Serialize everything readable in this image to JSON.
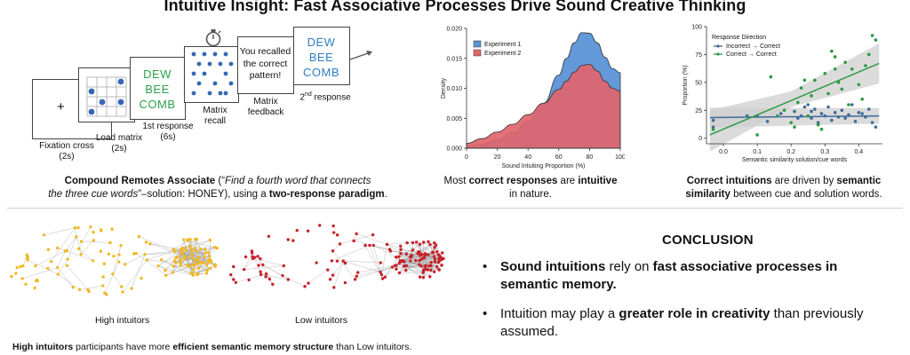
{
  "title": "Intuitive Insight: Fast Associative Processes Drive Sound Creative Thinking",
  "paradigm": {
    "fixation_symbol": "+",
    "cue_words": [
      "DEW",
      "BEE",
      "COMB"
    ],
    "feedback_text": [
      "You recalled",
      "the correct",
      "pattern!"
    ],
    "labels": {
      "fixation": [
        "Fixation cross",
        "(2s)"
      ],
      "load": [
        "Load matrix",
        "(2s)"
      ],
      "first": [
        "1st response",
        "(6s)"
      ],
      "recall": [
        "Matrix",
        "recall"
      ],
      "feedback": [
        "Matrix",
        "feedback"
      ],
      "second_sup": "nd",
      "second_num": "2",
      "second_rest": " response"
    },
    "caption": {
      "l1_b": "Compound Remotes Associate",
      "l1_a": " (“",
      "l1_i": "Find a fourth word that connects",
      "l2_i": "the three cue words",
      "l2_a": "”–solution: HONEY), using a ",
      "l2_b": "two-response paradigm",
      "l2_c": "."
    },
    "colors": {
      "green": "#2ca24b",
      "blue": "#2f7fc1",
      "dot": "#3567b5"
    }
  },
  "density_caption": {
    "a": "Most ",
    "b1": "correct responses",
    "c": " are ",
    "b2": "intuitive",
    "d": "in nature."
  },
  "scatter_caption": {
    "b1": "Correct intuitions",
    "a": " are driven by ",
    "b2": "semantic",
    "b3": "similarity",
    "c": " between cue and solution words."
  },
  "networks": {
    "high_label": "High intuitors",
    "low_label": "Low intuitors",
    "high_color": "#f2b822",
    "low_color": "#c8202a"
  },
  "conclusion": {
    "title": "CONCLUSION",
    "bullet": "•",
    "b1_bold1": "Sound intuitions",
    "b1_mid": " rely on ",
    "b1_bold2": "fast associative processes in",
    "b1_bold3": "semantic memory.",
    "b2_a": "Intuition may play a ",
    "b2_bold": "greater role in creativity",
    "b2_c": " than previously",
    "b2_d": "assumed."
  },
  "bottom_caption": {
    "b1": "High intuitors",
    "a": " participants have more ",
    "b2": "efficient  semantic memory structure",
    "c": " than Low intuitors."
  },
  "chart_data": [
    {
      "type": "area",
      "title": "",
      "xlabel": "Sound Intuiting Proportion (%)",
      "ylabel": "Density",
      "xlim": [
        0,
        100
      ],
      "ylim": [
        0,
        0.02
      ],
      "x_ticks": [
        "0",
        "20",
        "40",
        "60",
        "80",
        "100"
      ],
      "y_ticks": [
        "0.000",
        "0.005",
        "0.010",
        "0.015",
        "0.020"
      ],
      "legend": [
        "Experiment 1",
        "Experiment 2"
      ],
      "legend_position": "top-left",
      "x": [
        0,
        10,
        20,
        30,
        40,
        50,
        60,
        65,
        70,
        75,
        80,
        85,
        90,
        95,
        100
      ],
      "series": [
        {
          "name": "Experiment 1",
          "color": "#5b93d6",
          "values": [
            0.0003,
            0.0007,
            0.0014,
            0.0026,
            0.0045,
            0.0075,
            0.0122,
            0.015,
            0.0176,
            0.0193,
            0.0192,
            0.0176,
            0.0152,
            0.0133,
            0.0126
          ]
        },
        {
          "name": "Experiment 2",
          "color": "#e0656c",
          "values": [
            0.0008,
            0.0016,
            0.0027,
            0.004,
            0.0056,
            0.0075,
            0.0098,
            0.0112,
            0.0127,
            0.0138,
            0.014,
            0.0129,
            0.0112,
            0.01,
            0.0095
          ]
        }
      ]
    },
    {
      "type": "scatter",
      "title": "",
      "xlabel": "Semantic similarity solution/cue words",
      "ylabel": "Proportion (%)",
      "xlim": [
        -0.05,
        0.47
      ],
      "ylim": [
        -5,
        100
      ],
      "x_ticks": [
        "0.0",
        "0.1",
        "0.2",
        "0.3",
        "0.4"
      ],
      "y_ticks": [
        "0",
        "25",
        "50",
        "75",
        "100"
      ],
      "legend_title": "Response Direction",
      "legend_position": "top-left",
      "series": [
        {
          "name": "Incorrect → Correct",
          "color": "#3f6a9a",
          "fit": [
            [
              -0.04,
              18.5
            ],
            [
              0.46,
              20
            ]
          ],
          "points": [
            [
              -0.03,
              10
            ],
            [
              -0.03,
              16
            ],
            [
              0.07,
              20
            ],
            [
              0.1,
              20
            ],
            [
              0.13,
              15
            ],
            [
              0.17,
              22
            ],
            [
              0.21,
              24
            ],
            [
              0.23,
              20
            ],
            [
              0.24,
              28
            ],
            [
              0.25,
              30
            ],
            [
              0.26,
              18
            ],
            [
              0.27,
              26
            ],
            [
              0.28,
              14
            ],
            [
              0.29,
              22
            ],
            [
              0.3,
              20
            ],
            [
              0.31,
              28
            ],
            [
              0.32,
              16
            ],
            [
              0.33,
              23
            ],
            [
              0.34,
              19
            ],
            [
              0.35,
              25
            ],
            [
              0.37,
              21
            ],
            [
              0.38,
              30
            ],
            [
              0.39,
              15
            ],
            [
              0.4,
              23
            ],
            [
              0.41,
              22
            ],
            [
              0.42,
              19
            ],
            [
              0.43,
              26
            ],
            [
              0.44,
              14
            ],
            [
              0.45,
              10
            ],
            [
              0.36,
              18
            ],
            [
              0.26,
              24
            ],
            [
              0.22,
              18
            ]
          ]
        },
        {
          "name": "Correct → Correct",
          "color": "#2e9a44",
          "fit": [
            [
              -0.04,
              3
            ],
            [
              0.46,
              67
            ]
          ],
          "points": [
            [
              -0.03,
              8
            ],
            [
              0.1,
              3
            ],
            [
              0.14,
              55
            ],
            [
              0.16,
              20
            ],
            [
              0.18,
              25
            ],
            [
              0.2,
              14
            ],
            [
              0.22,
              32
            ],
            [
              0.23,
              45
            ],
            [
              0.24,
              52
            ],
            [
              0.25,
              20
            ],
            [
              0.26,
              38
            ],
            [
              0.27,
              52
            ],
            [
              0.28,
              12
            ],
            [
              0.29,
              8
            ],
            [
              0.3,
              58
            ],
            [
              0.31,
              40
            ],
            [
              0.32,
              78
            ],
            [
              0.33,
              62
            ],
            [
              0.34,
              50
            ],
            [
              0.35,
              44
            ],
            [
              0.36,
              68
            ],
            [
              0.37,
              30
            ],
            [
              0.38,
              62
            ],
            [
              0.4,
              48
            ],
            [
              0.41,
              35
            ],
            [
              0.42,
              65
            ],
            [
              0.43,
              75
            ],
            [
              0.44,
              92
            ],
            [
              0.45,
              88
            ],
            [
              0.21,
              10
            ],
            [
              0.33,
              73
            ]
          ]
        }
      ]
    }
  ]
}
